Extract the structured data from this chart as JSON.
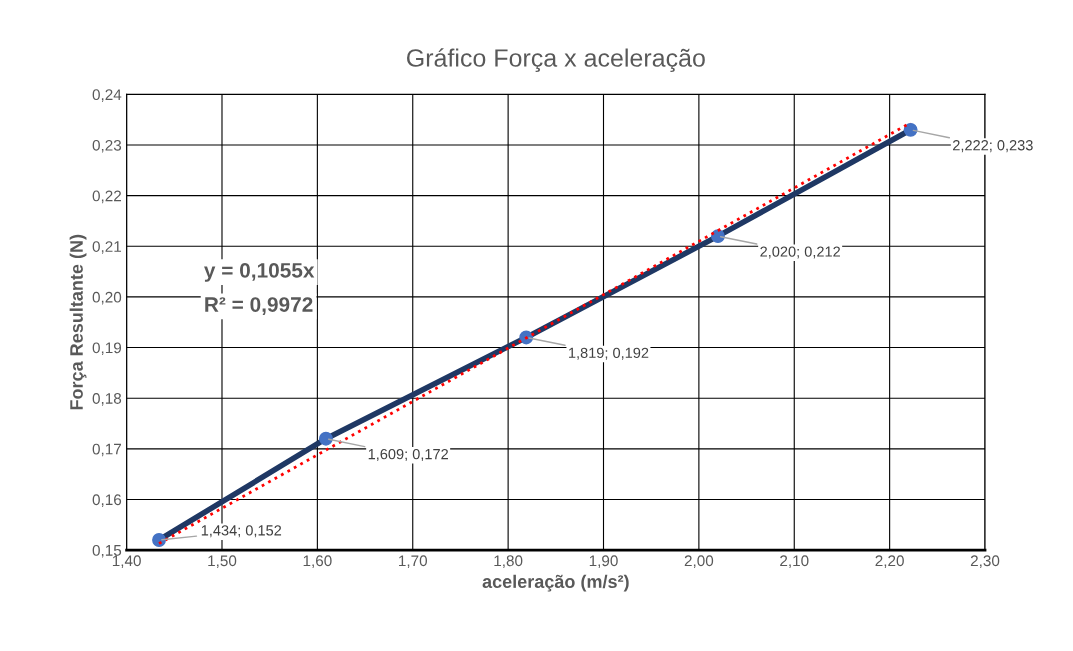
{
  "chart_data": {
    "type": "line",
    "title": "Gráfico Força x aceleração",
    "xlabel": "aceleração (m/s²)",
    "ylabel": "Força Resultante (N)",
    "x": [
      1.434,
      1.609,
      1.819,
      2.02,
      2.222
    ],
    "series": [
      {
        "color": "#1f3864",
        "marker": "circle",
        "values": [
          0.152,
          0.172,
          0.192,
          0.212,
          0.233
        ],
        "value_labels": [
          "1,434; 0,152",
          "1,609; 0,172",
          "1,819; 0,192",
          "2,020; 0,212",
          "2,222; 0,233"
        ]
      },
      {
        "type": "line",
        "color": "#ff0000",
        "line_style": "dotted",
        "x": [
          1.434,
          2.222
        ],
        "values": [
          0.1513,
          0.2344
        ]
      }
    ],
    "annotations": [
      "y = 0,1055x",
      "R² = 0,9972"
    ],
    "xlim": [
      1.4,
      2.3
    ],
    "xticks": [
      {
        "value": 1.4,
        "label": "1,40"
      },
      {
        "value": 1.5,
        "label": "1,50"
      },
      {
        "value": 1.6,
        "label": "1,60"
      },
      {
        "value": 1.7,
        "label": "1,70"
      },
      {
        "value": 1.8,
        "label": "1,80"
      },
      {
        "value": 1.9,
        "label": "1,90"
      },
      {
        "value": 2.0,
        "label": "2,00"
      },
      {
        "value": 2.1,
        "label": "2,10"
      },
      {
        "value": 2.2,
        "label": "2,20"
      },
      {
        "value": 2.3,
        "label": "2,30"
      }
    ],
    "ylim": [
      0.15,
      0.24
    ],
    "yticks": [
      {
        "value": 0.15,
        "label": "0,15"
      },
      {
        "value": 0.16,
        "label": "0,16"
      },
      {
        "value": 0.17,
        "label": "0,17"
      },
      {
        "value": 0.18,
        "label": "0,18"
      },
      {
        "value": 0.19,
        "label": "0,19"
      },
      {
        "value": 0.2,
        "label": "0,20"
      },
      {
        "value": 0.21,
        "label": "0,21"
      },
      {
        "value": 0.22,
        "label": "0,22"
      },
      {
        "value": 0.23,
        "label": "0,23"
      },
      {
        "value": 0.24,
        "label": "0,24"
      }
    ],
    "grid": true
  }
}
